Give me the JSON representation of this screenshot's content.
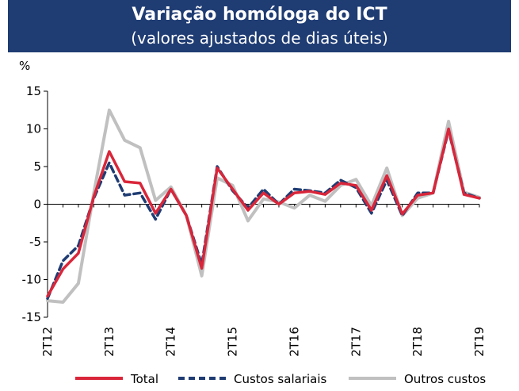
{
  "header": {
    "title": "Variação homóloga do ICT",
    "subtitle": "(valores ajustados de dias úteis)"
  },
  "chart_data": {
    "type": "line",
    "ylabel": "%",
    "ylim": [
      -15,
      15
    ],
    "yticks": [
      15,
      10,
      5,
      0,
      -5,
      -10,
      -15
    ],
    "x": [
      "2T12",
      "3T12",
      "4T12",
      "1T13",
      "2T13",
      "3T13",
      "4T13",
      "1T14",
      "2T14",
      "3T14",
      "4T14",
      "1T15",
      "2T15",
      "3T15",
      "4T15",
      "1T16",
      "2T16",
      "3T16",
      "4T16",
      "1T17",
      "2T17",
      "3T17",
      "4T17",
      "1T18",
      "2T18",
      "3T18",
      "4T18",
      "1T19",
      "2T19"
    ],
    "x_tick_labels": [
      "2T12",
      "",
      "",
      "",
      "2T13",
      "",
      "",
      "",
      "2T14",
      "",
      "",
      "",
      "2T15",
      "",
      "",
      "",
      "2T16",
      "",
      "",
      "",
      "2T17",
      "",
      "",
      "",
      "2T18",
      "",
      "",
      "",
      "2T19"
    ],
    "series": [
      {
        "name": "Total",
        "color": "#d9263a",
        "style": "solid",
        "values": [
          -12.2,
          -8.6,
          -6.5,
          1.0,
          7.0,
          3.0,
          2.8,
          -1.2,
          2.0,
          -1.5,
          -8.5,
          4.8,
          2.0,
          -0.8,
          1.5,
          0.0,
          1.5,
          1.7,
          1.3,
          2.8,
          2.5,
          -0.8,
          3.8,
          -1.3,
          1.2,
          1.5,
          10.0,
          1.3,
          0.8
        ]
      },
      {
        "name": "Custos salariais",
        "color": "#1f3c73",
        "style": "dashed",
        "values": [
          -12.5,
          -7.5,
          -5.5,
          0.8,
          5.5,
          1.2,
          1.5,
          -2.0,
          2.0,
          -1.5,
          -8.0,
          5.0,
          1.8,
          -0.5,
          2.0,
          0.0,
          2.0,
          1.8,
          1.5,
          3.2,
          2.2,
          -1.2,
          3.2,
          -1.5,
          1.5,
          1.5,
          9.8,
          1.5,
          0.8
        ]
      },
      {
        "name": "Outros custos",
        "color": "#c0c0c0",
        "style": "solid",
        "values": [
          -12.8,
          -13.0,
          -10.5,
          1.5,
          12.5,
          8.5,
          7.5,
          0.5,
          2.3,
          -1.5,
          -9.5,
          3.5,
          2.5,
          -2.2,
          0.7,
          0.3,
          -0.5,
          1.2,
          0.4,
          2.5,
          3.3,
          -0.2,
          4.8,
          -1.5,
          0.8,
          1.5,
          11.0,
          1.6,
          0.9
        ]
      }
    ],
    "legend": "bottom",
    "grid": false
  }
}
